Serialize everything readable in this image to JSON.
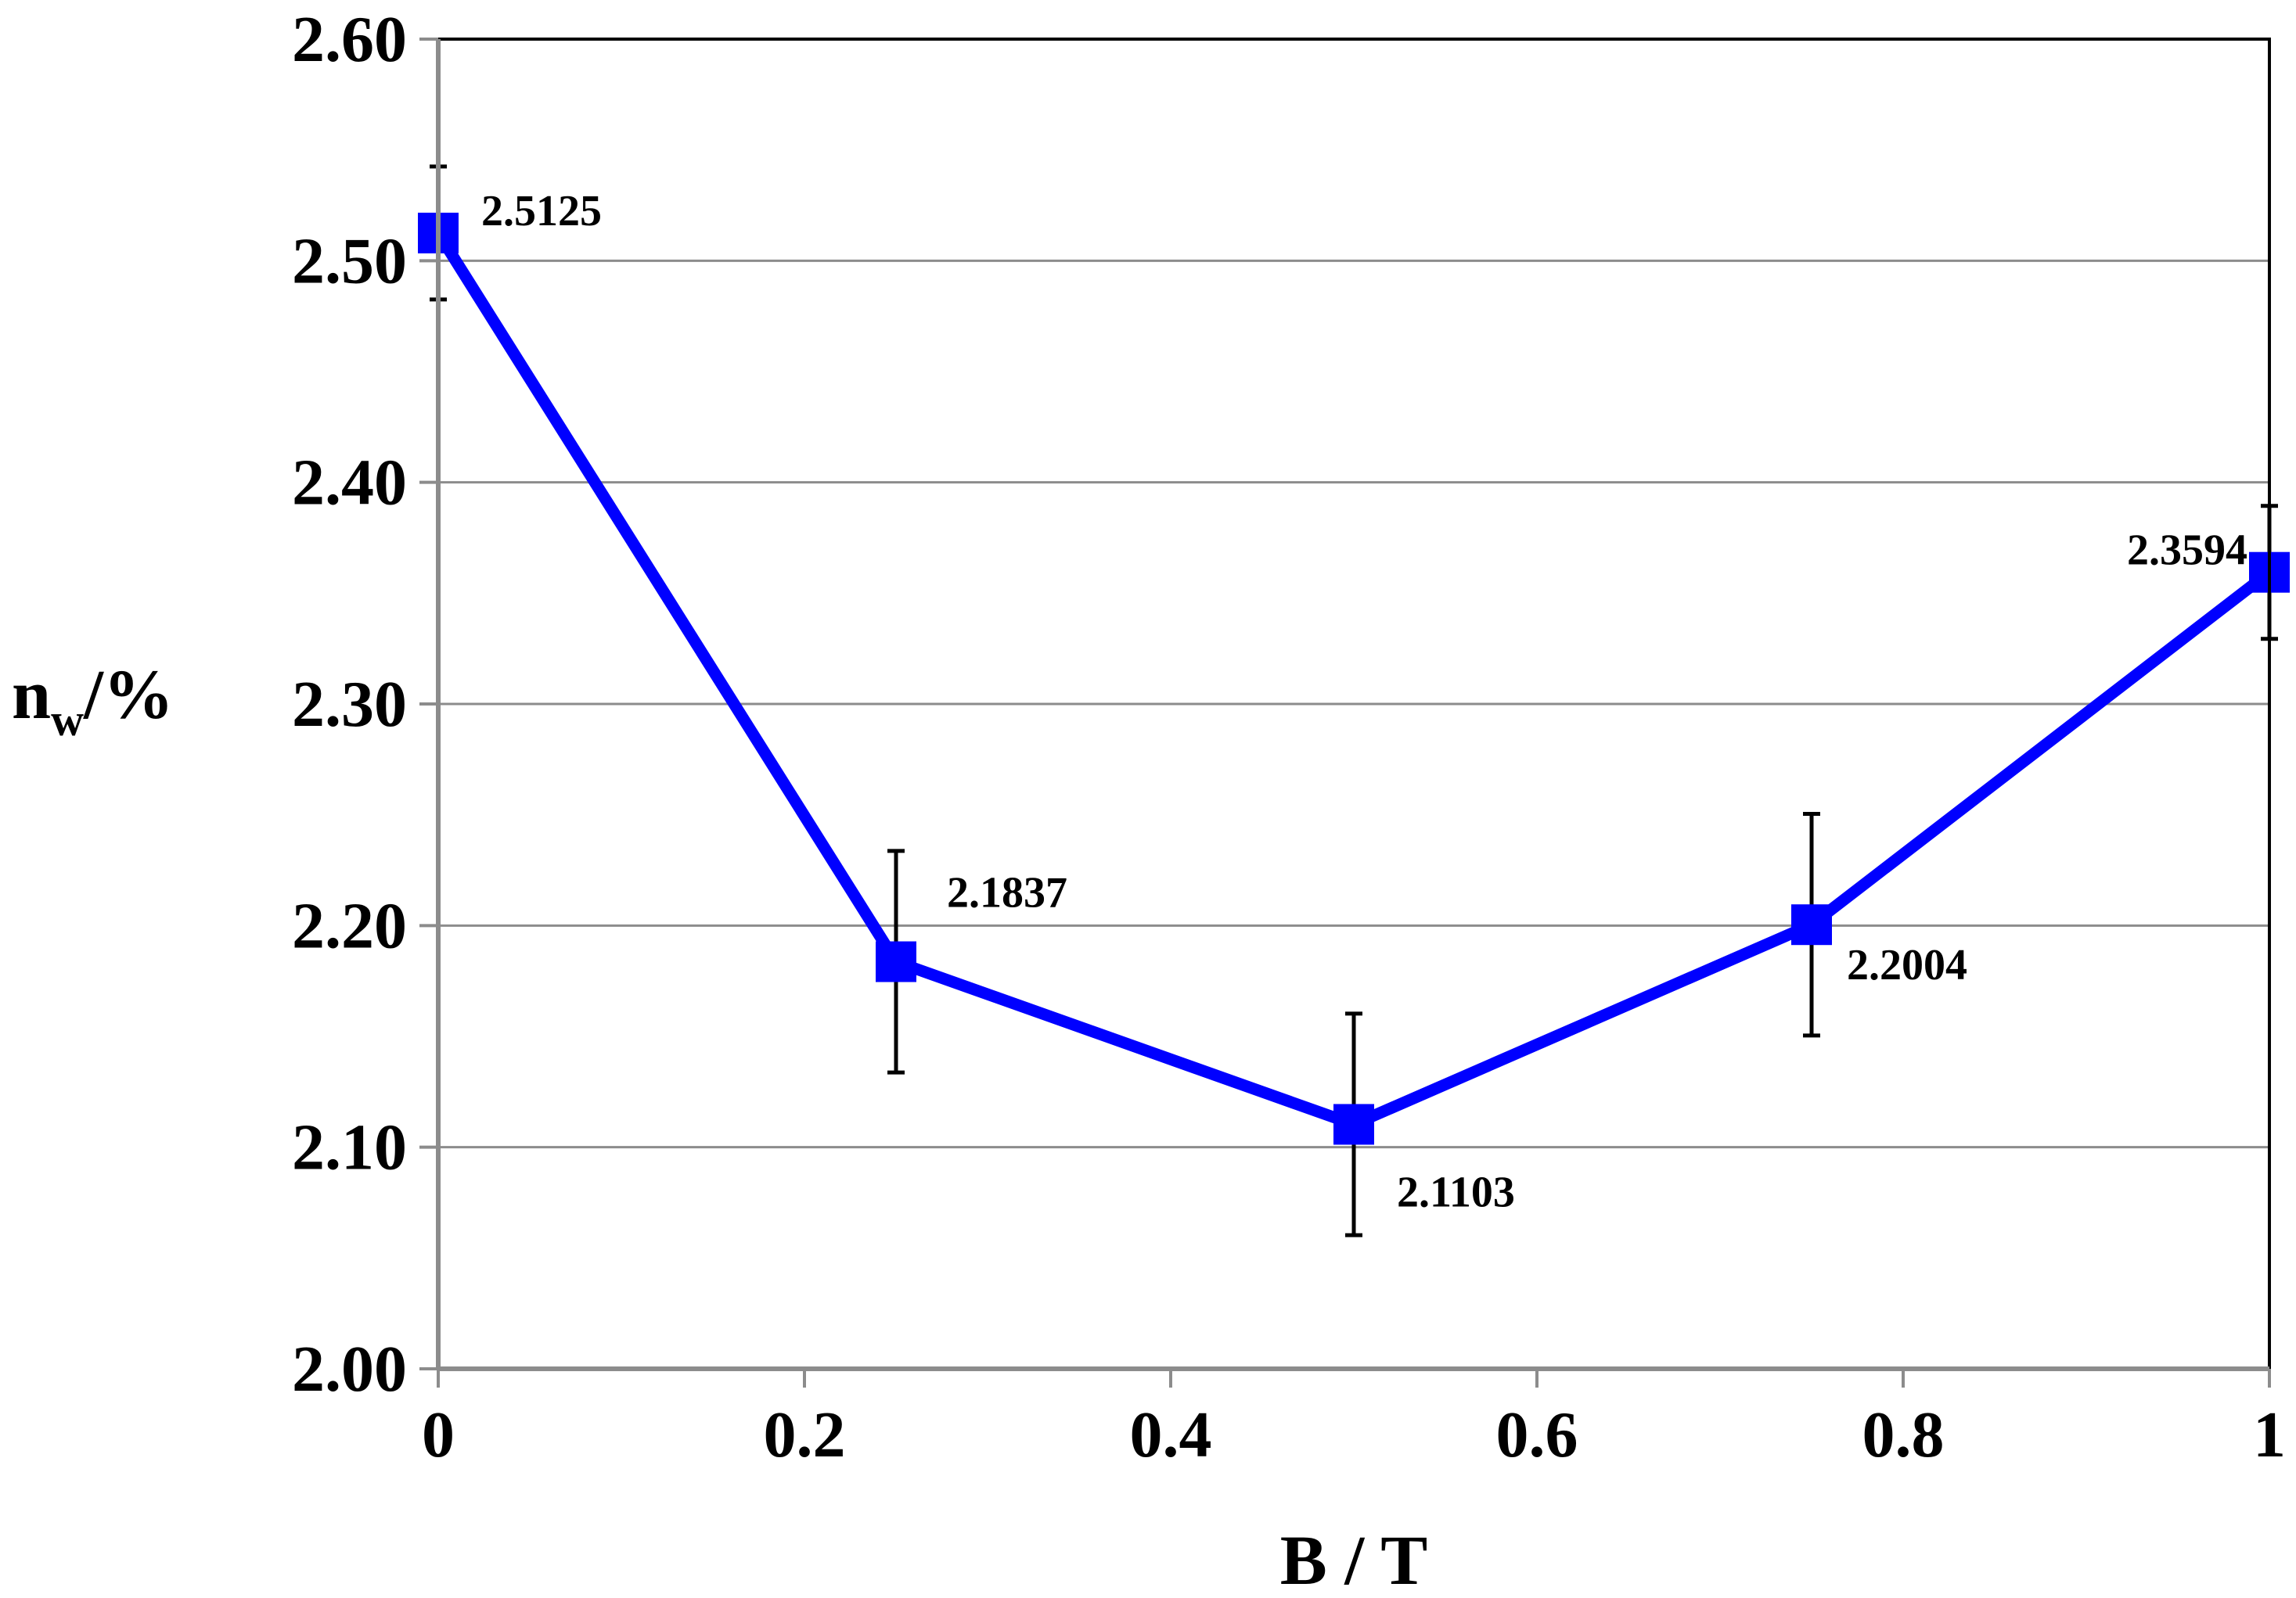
{
  "chart_data": {
    "type": "line",
    "title": "",
    "xlabel": "B / T",
    "ylabel": {
      "main": "n",
      "subscript": "w",
      "suffix": "/%"
    },
    "xlim": [
      0,
      1
    ],
    "ylim": [
      2.0,
      2.6
    ],
    "x_ticks": [
      0,
      0.2,
      0.4,
      0.6,
      0.8,
      1
    ],
    "x_tick_labels": [
      "0",
      "0.2",
      "0.4",
      "0.6",
      "0.8",
      "1"
    ],
    "y_ticks": [
      2.0,
      2.1,
      2.2,
      2.3,
      2.4,
      2.5,
      2.6
    ],
    "y_tick_labels": [
      "2.00",
      "2.10",
      "2.20",
      "2.30",
      "2.40",
      "2.50",
      "2.60"
    ],
    "grid": "horizontal",
    "series": [
      {
        "name": "n_w",
        "color": "#0000ff",
        "marker": "square",
        "x": [
          0,
          0.25,
          0.5,
          0.75,
          1
        ],
        "y": [
          2.5125,
          2.1837,
          2.1103,
          2.2004,
          2.3594
        ],
        "error": [
          0.03,
          0.05,
          0.05,
          0.05,
          0.03
        ],
        "labels": [
          "2.5125",
          "2.1837",
          "2.1103",
          "2.2004",
          "2.3594"
        ]
      }
    ]
  }
}
